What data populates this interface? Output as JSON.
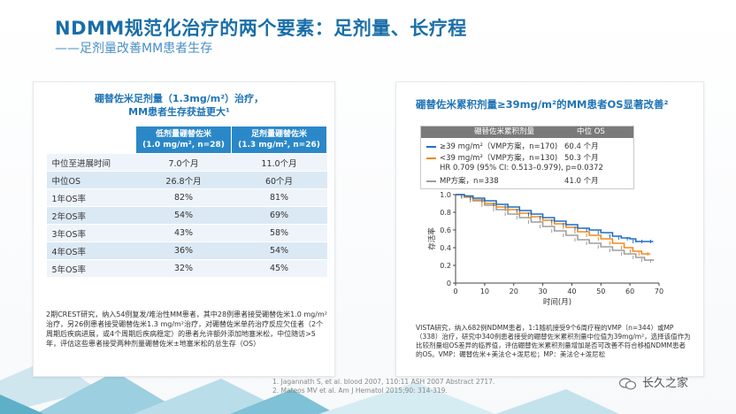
{
  "title": "NDMM规范化治疗的两个要素：足剂量、长疗程",
  "subtitle": "——足剂量改善MM患者生存",
  "left": {
    "heading_line1": "硼替佐米足剂量（1.3mg/m²）治疗，",
    "heading_line2": "MM患者生存获益更大¹",
    "col1_line1": "低剂量硼替佐米",
    "col1_line2": "(1.0 mg/m², n=28)",
    "col2_line1": "足剂量硼替佐米",
    "col2_line2": "(1.3 mg/m², n=26)",
    "rows": [
      {
        "label": "中位至进展时间",
        "low": "7.0个月",
        "full": "11.0个月"
      },
      {
        "label": "中位OS",
        "low": "26.8个月",
        "full": "60个月"
      },
      {
        "label": "1年OS率",
        "low": "82%",
        "full": "81%"
      },
      {
        "label": "2年OS率",
        "low": "54%",
        "full": "69%"
      },
      {
        "label": "3年OS率",
        "low": "43%",
        "full": "58%"
      },
      {
        "label": "4年OS率",
        "low": "36%",
        "full": "54%"
      },
      {
        "label": "5年OS率",
        "low": "32%",
        "full": "45%"
      }
    ],
    "note": "2期CREST研究，纳入54例复发/难治性MM患者，其中28例患者接受硼替佐米1.0 mg/m²治疗，另26例患者接受硼替佐米1.3 mg/m²治疗，对硼替佐米单药治疗反应欠佳者（2个周期后疾病进展，或4个周期后疾病稳定）的患者允许额外添加地塞米松，中位随访>5年，评估这些患者接受两种剂量硼替佐米±地塞米松的总生存（OS）"
  },
  "right": {
    "heading": "硼替佐米累积剂量≥39mg/m²的MM患者OS显著改善²",
    "legend_col1": "硼替佐米累积剂量",
    "legend_col2": "中位 OS",
    "legend_rows": [
      {
        "label": "≥39 mg/m²（VMP方案，n=170)",
        "value": "60.4 个月",
        "color": "#1f6fc5"
      },
      {
        "label": "<39 mg/m²（VMP方案，n=130)",
        "value": "50.3 个月",
        "color": "#f28a1e"
      },
      {
        "label": "HR 0.709 (95% CI: 0.513–0.979), p=0.0372",
        "value": "",
        "color": ""
      },
      {
        "label": "MP方案，n=338",
        "value": "41.0 个月",
        "color": "#9e9e9e"
      }
    ],
    "note": "VISTA研究，纳入682例NDMM患者，1:1随机接受9个6周疗程的VMP（n=344）或MP（338）治疗，研究中340例患者接受的硼替佐米累积剂量中位值为39mg/m²，选择该值作为比较剂量组OS差异的临界值，评估硼替佐米累积剂量增加是否可改善不符合移植NDMM患者的OS。VMP：硼替佐米+美法仑+泼尼松；MP：美法仑+泼尼松"
  },
  "chart_data": {
    "type": "line",
    "title": "",
    "xlabel": "时间(月)",
    "ylabel": "存活率",
    "xlim": [
      0,
      70
    ],
    "ylim": [
      0,
      1.0
    ],
    "xticks": [
      "0",
      "10",
      "20",
      "30",
      "40",
      "50",
      "60",
      "70"
    ],
    "yticks": [
      "0",
      "0.2",
      "0.4",
      "0.6",
      "0.8",
      "1.0"
    ],
    "series": [
      {
        "name": "≥39 mg/m²（VMP方案，n=170)",
        "color": "#1f6fc5",
        "x": [
          0,
          3,
          6,
          10,
          14,
          18,
          22,
          26,
          30,
          34,
          38,
          42,
          46,
          50,
          54,
          57,
          60,
          62,
          65,
          68
        ],
        "y": [
          1.0,
          0.985,
          0.96,
          0.93,
          0.89,
          0.86,
          0.82,
          0.78,
          0.74,
          0.7,
          0.66,
          0.62,
          0.6,
          0.57,
          0.53,
          0.51,
          0.5,
          0.47,
          0.47,
          0.47
        ]
      },
      {
        "name": "<39 mg/m²（VMP方案，n=130)",
        "color": "#f28a1e",
        "x": [
          0,
          3,
          6,
          10,
          14,
          18,
          22,
          26,
          30,
          34,
          38,
          42,
          46,
          50,
          54,
          58,
          61,
          64,
          67
        ],
        "y": [
          1.0,
          0.975,
          0.94,
          0.9,
          0.86,
          0.83,
          0.79,
          0.75,
          0.71,
          0.67,
          0.63,
          0.58,
          0.54,
          0.5,
          0.45,
          0.4,
          0.36,
          0.33,
          0.33
        ]
      },
      {
        "name": "MP方案，n=338",
        "color": "#9e9e9e",
        "x": [
          0,
          3,
          6,
          10,
          14,
          18,
          22,
          26,
          30,
          34,
          38,
          42,
          46,
          50,
          54,
          58,
          62,
          65,
          68
        ],
        "y": [
          1.0,
          0.97,
          0.93,
          0.88,
          0.83,
          0.78,
          0.74,
          0.69,
          0.64,
          0.59,
          0.54,
          0.49,
          0.45,
          0.41,
          0.37,
          0.33,
          0.29,
          0.26,
          0.25
        ]
      }
    ]
  },
  "refs": [
    "1.   Jagannath S, et al. blood 2007, 110:11  ASH 2007 Abstract 2717.",
    "2.   Mateos MV et al. Am J Hematol 2015;90:  314-319."
  ],
  "watermark": "长久之家"
}
